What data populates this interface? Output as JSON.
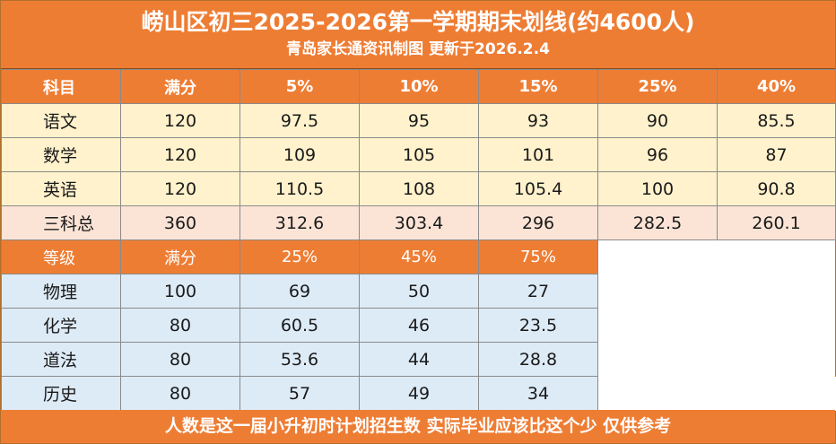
{
  "header": {
    "title": "崂山区初三2025-2026第一学期期末划线(约4600人)",
    "subtitle": "青岛家长通资讯制图 更新于2026.2.4"
  },
  "table1": {
    "columns": [
      "科目",
      "满分",
      "5%",
      "10%",
      "15%",
      "25%",
      "40%"
    ],
    "rows": [
      [
        "语文",
        "120",
        "97.5",
        "95",
        "93",
        "90",
        "85.5"
      ],
      [
        "数学",
        "120",
        "109",
        "105",
        "101",
        "96",
        "87"
      ],
      [
        "英语",
        "120",
        "110.5",
        "108",
        "105.4",
        "100",
        "90.8"
      ],
      [
        "三科总",
        "360",
        "312.6",
        "303.4",
        "296",
        "282.5",
        "260.1"
      ]
    ]
  },
  "table2": {
    "columns": [
      "等级",
      "满分",
      "25%",
      "45%",
      "75%"
    ],
    "rows": [
      [
        "物理",
        "100",
        "69",
        "50",
        "27"
      ],
      [
        "化学",
        "80",
        "60.5",
        "46",
        "23.5"
      ],
      [
        "道法",
        "80",
        "53.6",
        "44",
        "28.8"
      ],
      [
        "历史",
        "80",
        "57",
        "49",
        "34"
      ]
    ]
  },
  "footer": {
    "note": "人数是这一届小升初时计划招生数 实际毕业应该比这个少 仅供参考"
  },
  "colors": {
    "accent": "#ee7d34",
    "yellow_row": "#fff2cc",
    "pink_row": "#fbe4d6",
    "blue_row": "#ddebf7"
  }
}
